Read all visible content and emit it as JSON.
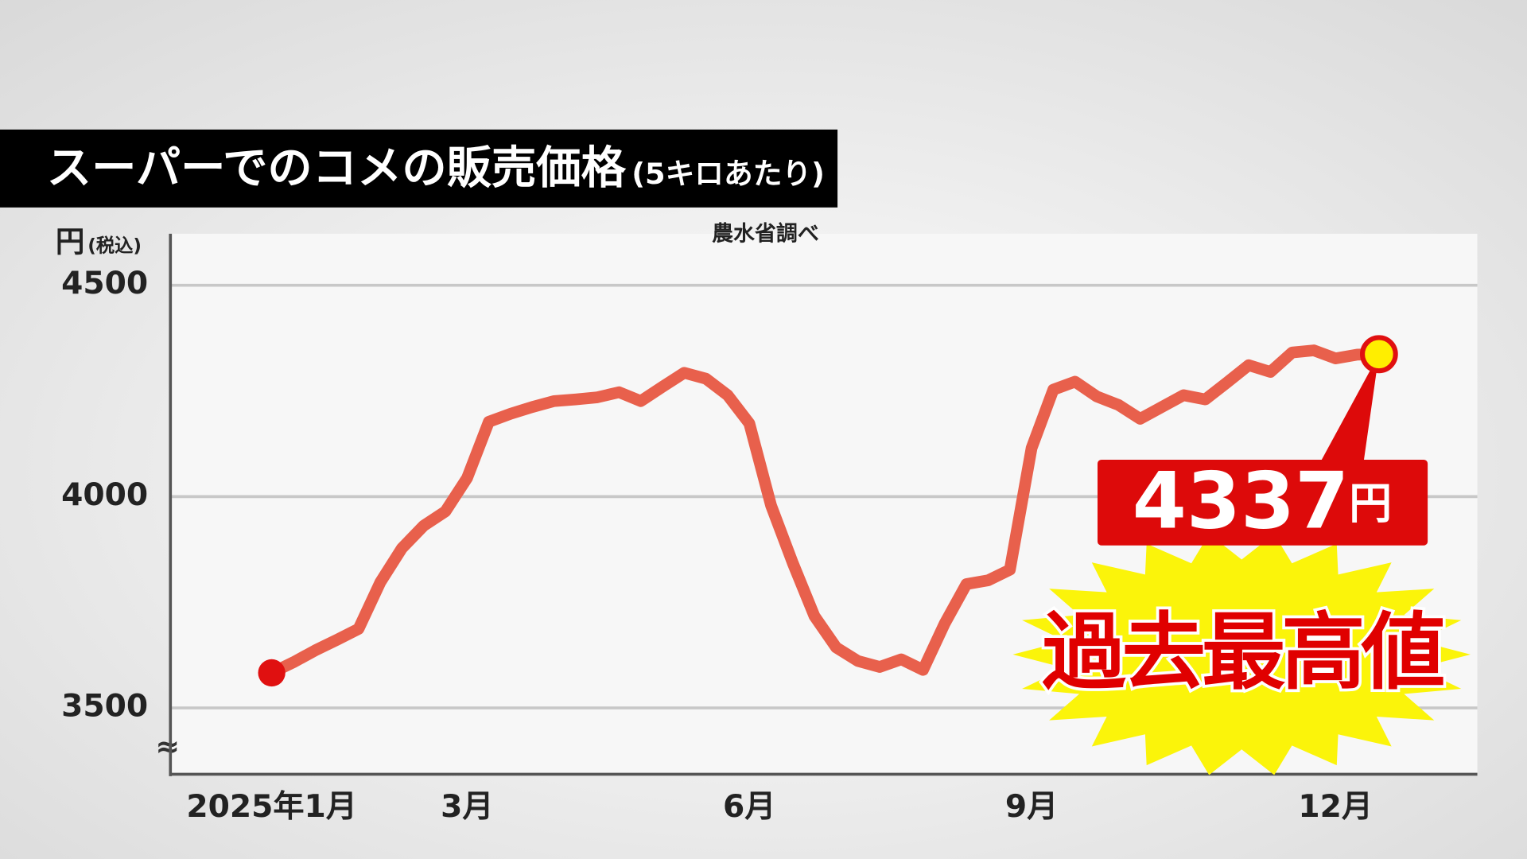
{
  "chart_data": {
    "type": "line",
    "title": "スーパーでのコメの販売価格",
    "subtitle": "(5キロあたり)",
    "source": "農水省調べ",
    "y_label": "円",
    "y_label_note": "(税込)",
    "axis_break": "≈",
    "annotation": "過去最高値",
    "categories": [
      "2025年1月",
      null,
      null,
      null,
      null,
      null,
      null,
      null,
      null,
      "3月",
      null,
      null,
      null,
      null,
      null,
      null,
      null,
      null,
      null,
      null,
      null,
      null,
      "6月",
      null,
      null,
      null,
      null,
      null,
      null,
      null,
      null,
      null,
      null,
      null,
      null,
      "9月",
      null,
      null,
      null,
      null,
      null,
      null,
      null,
      null,
      null,
      null,
      null,
      null,
      null,
      "12月",
      null,
      null
    ],
    "values": [
      3583,
      3608,
      3636,
      3661,
      3687,
      3797,
      3878,
      3931,
      3965,
      4044,
      4177,
      4196,
      4212,
      4226,
      4230,
      4235,
      4247,
      4226,
      4260,
      4293,
      4279,
      4240,
      4173,
      3979,
      3843,
      3717,
      3643,
      3611,
      3597,
      3615,
      3590,
      3700,
      3793,
      3802,
      3827,
      4115,
      4253,
      4272,
      4237,
      4217,
      4184,
      4212,
      4240,
      4230,
      4270,
      4311,
      4295,
      4341,
      4346,
      4327,
      4336,
      4337
    ],
    "value_labels": [
      null,
      null,
      null,
      null,
      null,
      null,
      null,
      null,
      null,
      null,
      null,
      null,
      null,
      null,
      null,
      null,
      null,
      null,
      null,
      null,
      null,
      null,
      null,
      null,
      null,
      null,
      null,
      null,
      null,
      null,
      null,
      null,
      null,
      null,
      null,
      null,
      null,
      null,
      null,
      null,
      null,
      null,
      null,
      null,
      null,
      null,
      null,
      null,
      null,
      null,
      null,
      "4337円"
    ],
    "color": "#e8604c",
    "ylim": [
      3343,
      4622
    ],
    "yticks": [
      3500,
      4000,
      4500
    ],
    "grid": true
  }
}
